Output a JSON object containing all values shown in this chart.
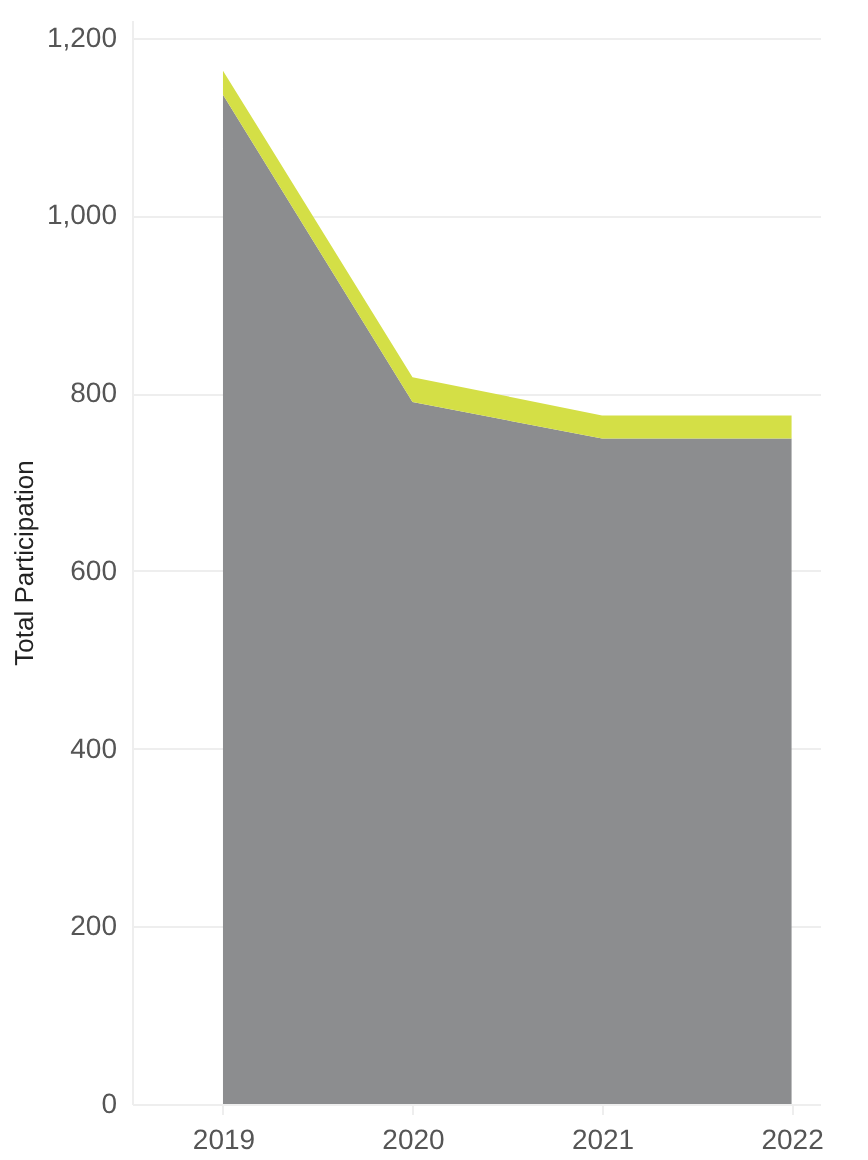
{
  "chart_data": {
    "type": "area",
    "stacked": true,
    "ylabel": "Total Participation",
    "categories": [
      "2019",
      "2020",
      "2021",
      "2022"
    ],
    "series": [
      {
        "color": "#8c8d8f",
        "values": [
          1136,
          790,
          749,
          749
        ]
      },
      {
        "color": "#d4df46",
        "values": [
          27,
          28,
          26,
          26
        ]
      }
    ],
    "ylim": [
      0,
      1220
    ],
    "yticks": [
      0,
      200,
      400,
      600,
      800,
      {
        "value": 1000,
        "label": "1,000"
      },
      {
        "value": 1200,
        "label": "1,200"
      }
    ],
    "grid": "y",
    "legend": false
  }
}
